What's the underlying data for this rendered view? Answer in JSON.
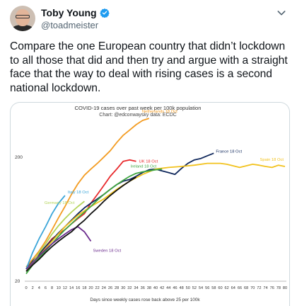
{
  "tweet": {
    "author_name": "Toby Young",
    "handle": "@toadmeister",
    "text": "Compare the one European country that didn’t lockdown to all those that did and then try and argue with a straight face that the way to deal with rising cases is a second national lockdown."
  },
  "icons": {
    "verified": "verified-badge-icon",
    "more": "chevron-down-icon",
    "avatar": "avatar-photo"
  },
  "colors": {
    "verified": "#1d9bf0",
    "netherlands": "#f39c22",
    "uk": "#e8282b",
    "france": "#10285c",
    "spain": "#f2c21d",
    "ireland": "#3fa540",
    "italy": "#3aa5d8",
    "germany": "#b4d45a",
    "sweden": "#6a2a8c",
    "greek": "#111111"
  },
  "chart_data": {
    "type": "line",
    "title": "COVID-19 cases over past week per 100k population",
    "subtitle": "Chart: @edconwaysky data: ECDC",
    "xlabel": "Days since weekly cases rose back above 25 per 100k",
    "ylabel": "",
    "y_scale": "log",
    "xlim": [
      0,
      80
    ],
    "ylim": [
      20,
      400
    ],
    "x_ticks": [
      0,
      2,
      4,
      6,
      8,
      10,
      12,
      14,
      16,
      18,
      20,
      22,
      24,
      26,
      28,
      30,
      32,
      34,
      36,
      38,
      40,
      42,
      44,
      46,
      48,
      50,
      52,
      54,
      56,
      58,
      60,
      62,
      64,
      66,
      68,
      70,
      72,
      74,
      76,
      78,
      80
    ],
    "y_ticks": [
      20,
      200
    ],
    "grid": false,
    "series": [
      {
        "name": "Netherlands 18 Oct",
        "color": "#f39c22",
        "x": [
          0,
          2,
          4,
          6,
          8,
          10,
          12,
          14,
          16,
          18,
          20,
          22,
          24,
          26,
          28,
          30,
          32,
          34,
          36,
          38
        ],
        "y": [
          26,
          30,
          35,
          42,
          52,
          65,
          80,
          100,
          122,
          143,
          160,
          178,
          200,
          225,
          262,
          300,
          330,
          365,
          395,
          410
        ]
      },
      {
        "name": "UK 18 Oct",
        "color": "#e8282b",
        "x": [
          0,
          2,
          4,
          6,
          8,
          10,
          12,
          14,
          16,
          18,
          20,
          22,
          24,
          26,
          28,
          30,
          32,
          34
        ],
        "y": [
          25,
          28,
          33,
          38,
          44,
          48,
          52,
          58,
          64,
          70,
          85,
          100,
          118,
          140,
          160,
          185,
          190,
          185
        ]
      },
      {
        "name": "France 18 Oct",
        "color": "#10285c",
        "x": [
          0,
          2,
          4,
          6,
          8,
          10,
          12,
          14,
          16,
          18,
          20,
          22,
          24,
          26,
          28,
          30,
          32,
          34,
          36,
          38,
          40,
          42,
          44,
          46,
          48,
          50,
          52,
          54,
          56,
          58
        ],
        "y": [
          25,
          29,
          33,
          38,
          43,
          49,
          55,
          62,
          70,
          78,
          85,
          92,
          100,
          110,
          120,
          128,
          132,
          140,
          150,
          158,
          160,
          155,
          150,
          145,
          162,
          178,
          190,
          195,
          205,
          215
        ]
      },
      {
        "name": "Spain 18 Oct",
        "color": "#f2c21d",
        "x": [
          0,
          4,
          8,
          12,
          16,
          20,
          24,
          28,
          32,
          36,
          40,
          44,
          48,
          52,
          56,
          60,
          62,
          64,
          66,
          68,
          70,
          72,
          74,
          76,
          78,
          80
        ],
        "y": [
          25,
          32,
          42,
          55,
          68,
          80,
          92,
          110,
          128,
          145,
          160,
          165,
          168,
          172,
          178,
          178,
          175,
          170,
          165,
          170,
          175,
          172,
          168,
          165,
          172,
          168
        ]
      },
      {
        "name": "Ireland 18 Oct",
        "color": "#3fa540",
        "x": [
          0,
          2,
          4,
          6,
          8,
          10,
          12,
          14,
          16,
          18,
          20,
          22,
          24,
          26,
          28,
          30,
          32,
          34,
          36,
          38,
          40,
          42
        ],
        "y": [
          23,
          27,
          31,
          35,
          40,
          46,
          52,
          58,
          65,
          72,
          80,
          90,
          100,
          110,
          120,
          130,
          140,
          148,
          152,
          155,
          158,
          160
        ]
      },
      {
        "name": "Italy 18 Oct",
        "color": "#3aa5d8",
        "x": [
          0,
          2,
          4,
          6,
          8,
          10,
          12
        ],
        "y": [
          25,
          34,
          44,
          55,
          70,
          85,
          98
        ]
      },
      {
        "name": "Germany 18 Oct",
        "color": "#b4d45a",
        "x": [
          0,
          2,
          4,
          6,
          8,
          10,
          12,
          14,
          16,
          18
        ],
        "y": [
          24,
          28,
          34,
          40,
          48,
          56,
          64,
          72,
          80,
          88
        ]
      },
      {
        "name": "Sweden 18 Oct",
        "color": "#6a2a8c",
        "x": [
          0,
          2,
          4,
          6,
          8,
          10,
          12,
          14,
          16,
          18,
          20
        ],
        "y": [
          25,
          28,
          32,
          36,
          40,
          44,
          48,
          52,
          55,
          50,
          42
        ]
      },
      {
        "name": "",
        "color": "#111111",
        "x": [
          0,
          2,
          4,
          6,
          8,
          10,
          12,
          14,
          16,
          18,
          20,
          22,
          24,
          26,
          28,
          30,
          32,
          34
        ],
        "y": [
          24,
          27,
          30,
          34,
          38,
          42,
          46,
          50,
          56,
          62,
          70,
          78,
          88,
          98,
          108,
          118,
          128,
          138
        ]
      }
    ]
  }
}
